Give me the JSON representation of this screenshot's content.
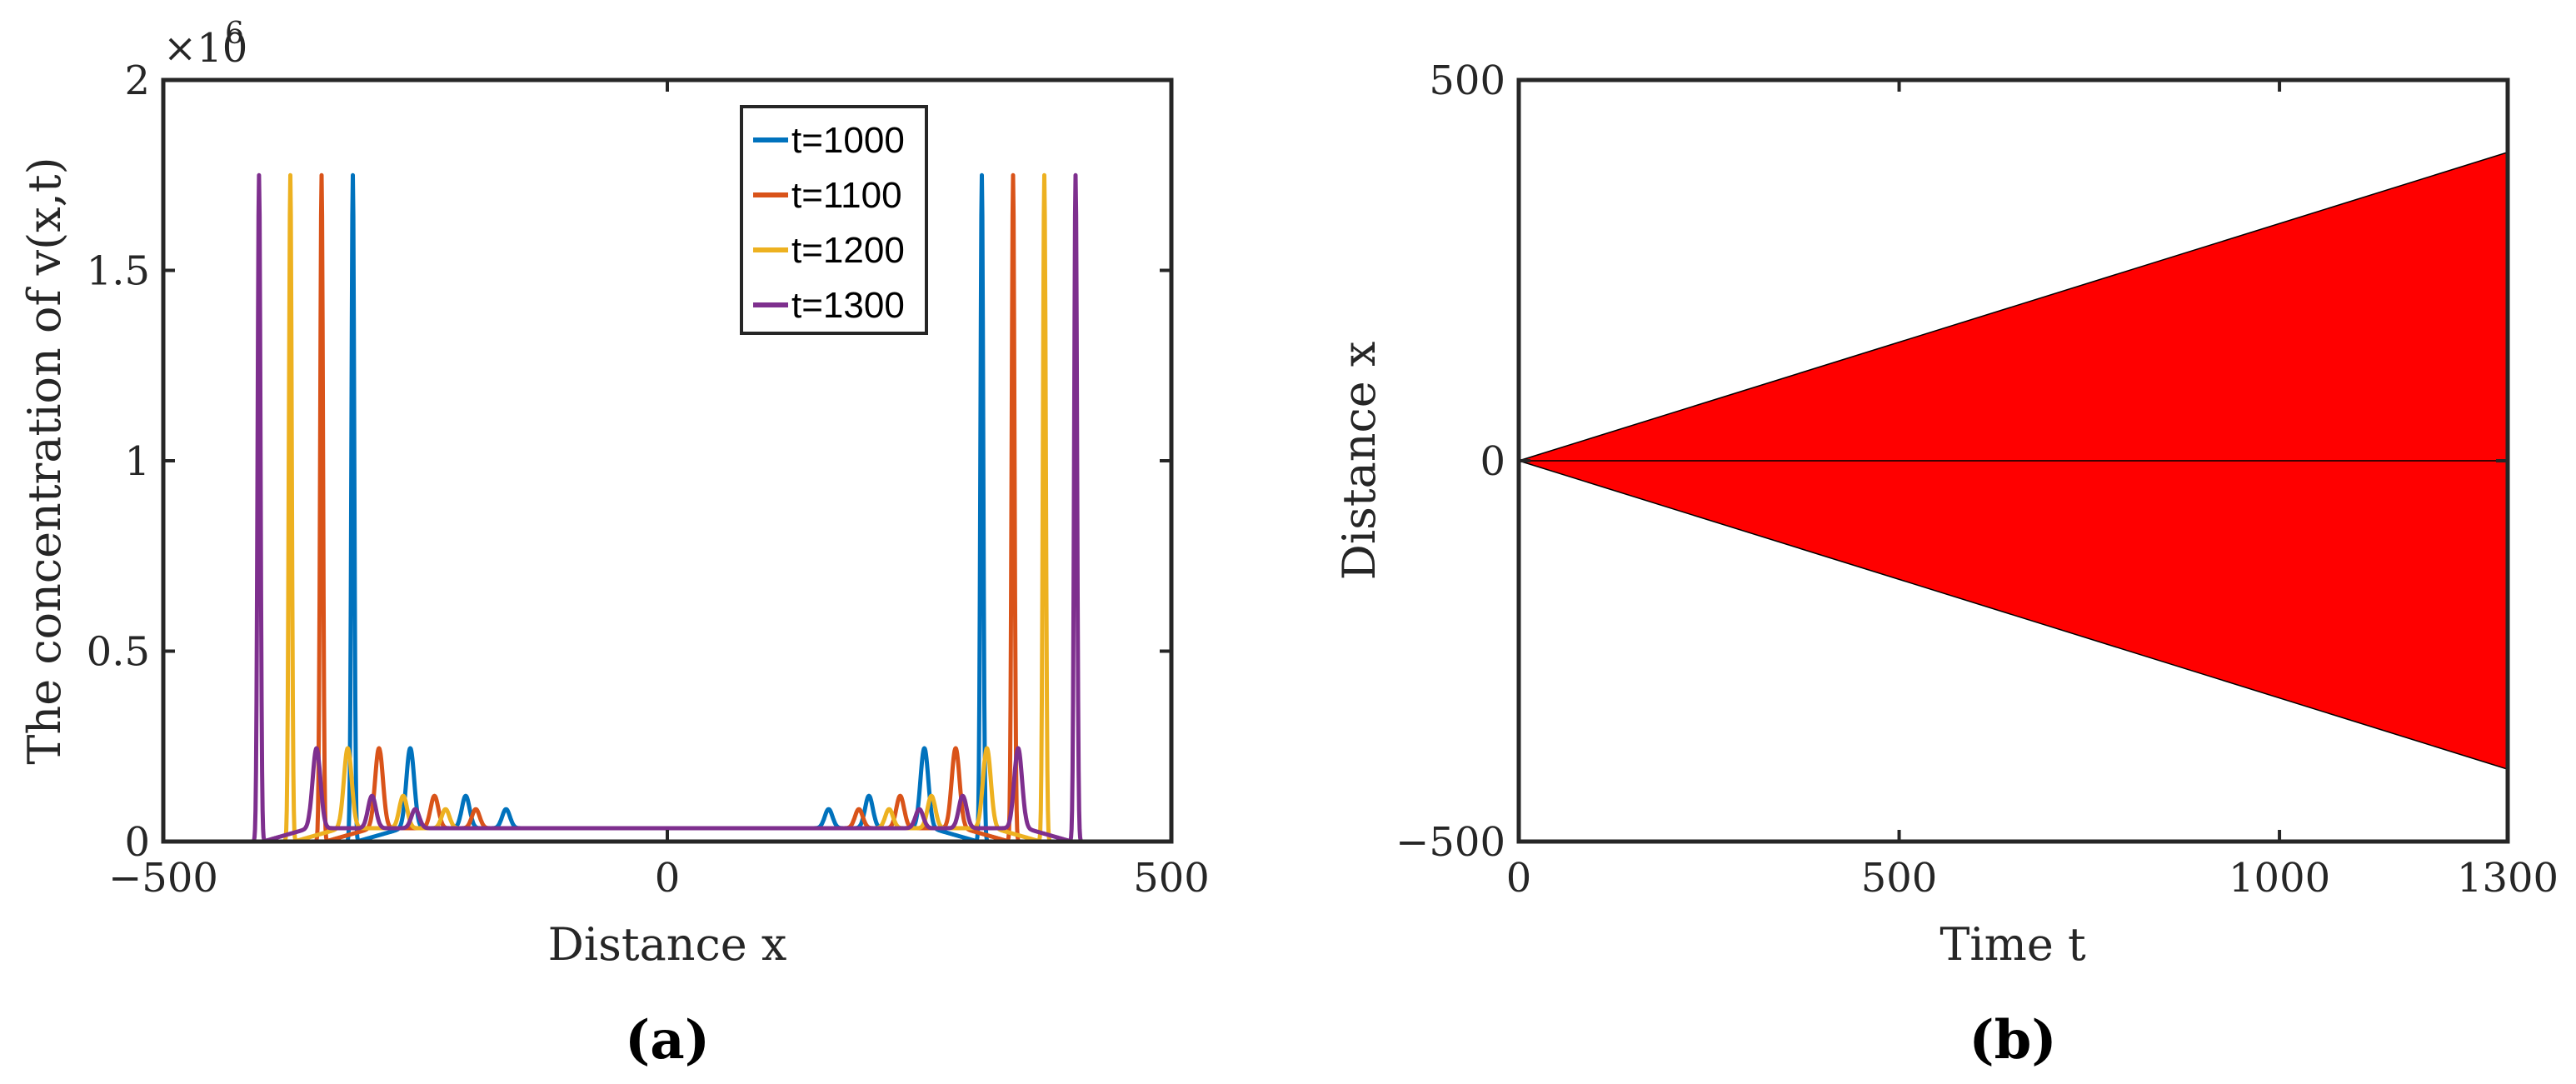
{
  "chart_data": [
    {
      "type": "line",
      "panel_label": "(a)",
      "xlabel": "Distance x",
      "ylabel": "The concentration of v(x,t)",
      "y_exponent_label": "×10",
      "y_exponent_power": "6",
      "xlim": [
        -500,
        500
      ],
      "ylim": [
        0,
        2
      ],
      "x_ticks": [
        -500,
        0,
        500
      ],
      "x_tick_labels": [
        "−500",
        "0",
        "500"
      ],
      "y_ticks": [
        0,
        0.5,
        1,
        1.5,
        2
      ],
      "y_tick_labels": [
        "0",
        "0.5",
        "1",
        "1.5",
        "2"
      ],
      "legend_position": "top-center",
      "baseline": 0.035,
      "series": [
        {
          "name": "t=1000",
          "color": "#0072BD",
          "front": 312,
          "peak": 1.75,
          "ripples": [
            {
              "x": 255,
              "y": 0.21
            },
            {
              "x": 200,
              "y": 0.085
            },
            {
              "x": 160,
              "y": 0.05
            }
          ]
        },
        {
          "name": "t=1100",
          "color": "#D95319",
          "front": 343,
          "peak": 1.75,
          "ripples": [
            {
              "x": 286,
              "y": 0.21
            },
            {
              "x": 231,
              "y": 0.085
            },
            {
              "x": 190,
              "y": 0.05
            }
          ]
        },
        {
          "name": "t=1200",
          "color": "#EDB120",
          "front": 374,
          "peak": 1.75,
          "ripples": [
            {
              "x": 317,
              "y": 0.21
            },
            {
              "x": 262,
              "y": 0.085
            },
            {
              "x": 220,
              "y": 0.05
            }
          ]
        },
        {
          "name": "t=1300",
          "color": "#7E2F8E",
          "front": 405,
          "peak": 1.75,
          "ripples": [
            {
              "x": 348,
              "y": 0.21
            },
            {
              "x": 293,
              "y": 0.085
            },
            {
              "x": 250,
              "y": 0.05
            }
          ]
        }
      ]
    },
    {
      "type": "area",
      "panel_label": "(b)",
      "xlabel": "Time t",
      "ylabel": "Distance x",
      "xlim": [
        0,
        1300
      ],
      "ylim": [
        -500,
        500
      ],
      "x_ticks": [
        0,
        500,
        1000,
        1300
      ],
      "x_tick_labels": [
        "0",
        "500",
        "1000",
        "1300"
      ],
      "y_ticks": [
        -500,
        0,
        500
      ],
      "y_tick_labels": [
        "−500",
        "0",
        "500"
      ],
      "fill_color": "#FF0000",
      "upper_boundary": [
        {
          "t": 0,
          "x": 0
        },
        {
          "t": 1300,
          "x": 405
        }
      ],
      "lower_boundary": [
        {
          "t": 0,
          "x": 0
        },
        {
          "t": 1300,
          "x": -405
        }
      ],
      "center_line": [
        {
          "t": 0,
          "x": 0
        },
        {
          "t": 1300,
          "x": 0
        }
      ]
    }
  ]
}
